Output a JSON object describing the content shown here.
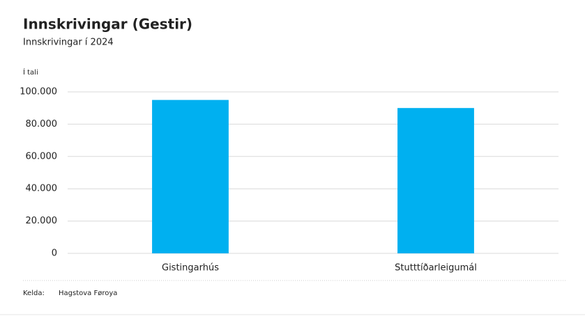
{
  "chart_data": {
    "type": "bar",
    "title": "Innskrivingar (Gestir)",
    "subtitle": "Innskrivingar í 2024",
    "y_label": "Í tali",
    "categories": [
      "Gistingarhús",
      "Stutttíðarleigumál"
    ],
    "values": [
      95000,
      90000
    ],
    "color": "#00b0f0",
    "ylim": [
      0,
      100000
    ],
    "yticks": [
      0,
      {
        "value": 20000,
        "label": "20.000"
      },
      {
        "value": 40000,
        "label": "40.000"
      },
      {
        "value": 60000,
        "label": "60.000"
      },
      {
        "value": 80000,
        "label": "80.000"
      },
      {
        "value": 100000,
        "label": "100.000"
      }
    ],
    "grid": true,
    "source_label": "Kelda:",
    "source": "Hagstova Føroya"
  }
}
